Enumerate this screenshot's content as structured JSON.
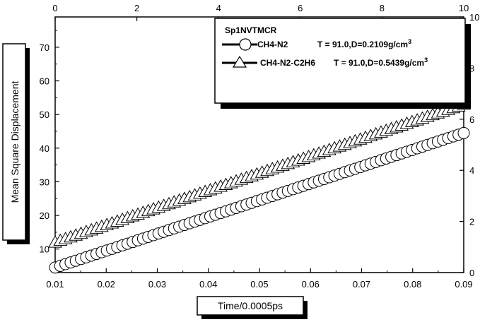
{
  "chart_data": {
    "type": "scatter",
    "xlabel": "Time/0.0005ps",
    "ylabel": "Mean Square Displacement",
    "xlim": [
      0.01,
      0.09
    ],
    "ylim": [
      3,
      79
    ],
    "x_ticks": [
      "0.01",
      "0.02",
      "0.03",
      "0.04",
      "0.05",
      "0.06",
      "0.07",
      "0.08",
      "0.09"
    ],
    "y_ticks": [
      "10",
      "20",
      "30",
      "40",
      "50",
      "60",
      "70"
    ],
    "top_axis": {
      "range": [
        0,
        10
      ],
      "ticks": [
        "0",
        "2",
        "4",
        "6",
        "8",
        "10"
      ]
    },
    "right_axis": {
      "range": [
        0,
        10
      ],
      "ticks": [
        "0",
        "2",
        "4",
        "6",
        "8",
        "10"
      ]
    },
    "grid": false,
    "legend": {
      "title": "Sp1NVTMCR",
      "placement": "top-right",
      "entries": [
        {
          "label": "CH4-N2",
          "info": "T = 91.0,D=0.2109g/cm",
          "sup": "3",
          "marker": "circle"
        },
        {
          "label": "CH4-N2-C2H6",
          "info": "T = 91.0,D=0.5439g/cm",
          "sup": "3",
          "marker": "triangle"
        }
      ]
    },
    "series": [
      {
        "name": "CH4-N2",
        "marker": "circle",
        "x_start": 0.01,
        "x_end": 0.09,
        "points": 80,
        "y_start": 4.5,
        "y_end": 44.5
      },
      {
        "name": "CH4-N2-C2H6",
        "marker": "triangle",
        "x_start": 0.01,
        "x_end": 0.09,
        "points": 80,
        "y_start": 12.0,
        "y_end": 53.0
      }
    ]
  }
}
